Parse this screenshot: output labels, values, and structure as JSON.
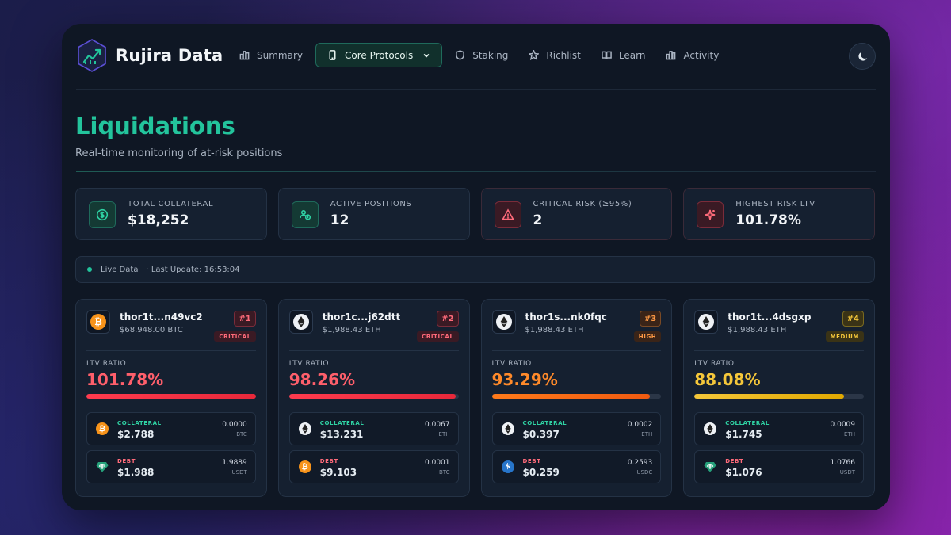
{
  "app": {
    "brand": "Rujira Data"
  },
  "nav": {
    "summary": "Summary",
    "core_protocols": "Core Protocols",
    "staking": "Staking",
    "richlist": "Richlist",
    "learn": "Learn",
    "activity": "Activity"
  },
  "page": {
    "title": "Liquidations",
    "subtitle": "Real-time monitoring of at-risk positions"
  },
  "stats": [
    {
      "label": "TOTAL COLLATERAL",
      "value": "$18,252",
      "icon": "dollar-icon",
      "tone": "green"
    },
    {
      "label": "ACTIVE POSITIONS",
      "value": "12",
      "icon": "users-coin-icon",
      "tone": "green"
    },
    {
      "label": "CRITICAL RISK (≥95%)",
      "value": "2",
      "icon": "warning-icon",
      "tone": "red"
    },
    {
      "label": "HIGHEST RISK LTV",
      "value": "101.78%",
      "icon": "sparkle-icon",
      "tone": "red"
    }
  ],
  "live": {
    "label": "Live Data",
    "update": "· Last Update: 16:53:04"
  },
  "colors": {
    "critical": "#ff4d5e",
    "high": "#ff8a1f",
    "medium": "#f0c419",
    "accent": "#23c49c"
  },
  "positions": [
    {
      "address": "thor1t...n49vc2",
      "amount": "$68,948.00 BTC",
      "asset": "btc",
      "rank": "#1",
      "severity": "CRITICAL",
      "ltv_label": "LTV RATIO",
      "ltv": "101.78%",
      "ltv_pct": 100,
      "collateral": {
        "label": "COLLATERAL",
        "value": "$2.788",
        "amount": "0.0000",
        "token": "BTC",
        "icon": "btc"
      },
      "debt": {
        "label": "DEBT",
        "value": "$1.988",
        "amount": "1.9889",
        "token": "USDT",
        "icon": "usdt"
      }
    },
    {
      "address": "thor1c...j62dtt",
      "amount": "$1,988.43 ETH",
      "asset": "eth",
      "rank": "#2",
      "severity": "CRITICAL",
      "ltv_label": "LTV RATIO",
      "ltv": "98.26%",
      "ltv_pct": 98.26,
      "collateral": {
        "label": "COLLATERAL",
        "value": "$13.231",
        "amount": "0.0067",
        "token": "ETH",
        "icon": "eth"
      },
      "debt": {
        "label": "DEBT",
        "value": "$9.103",
        "amount": "0.0001",
        "token": "BTC",
        "icon": "btc"
      }
    },
    {
      "address": "thor1s...nk0fqc",
      "amount": "$1,988.43 ETH",
      "asset": "eth",
      "rank": "#3",
      "severity": "HIGH",
      "ltv_label": "LTV RATIO",
      "ltv": "93.29%",
      "ltv_pct": 93.29,
      "collateral": {
        "label": "COLLATERAL",
        "value": "$0.397",
        "amount": "0.0002",
        "token": "ETH",
        "icon": "eth"
      },
      "debt": {
        "label": "DEBT",
        "value": "$0.259",
        "amount": "0.2593",
        "token": "USDC",
        "icon": "usdc"
      }
    },
    {
      "address": "thor1t...4dsgxp",
      "amount": "$1,988.43 ETH",
      "asset": "eth",
      "rank": "#4",
      "severity": "MEDIUM",
      "ltv_label": "LTV RATIO",
      "ltv": "88.08%",
      "ltv_pct": 88.08,
      "collateral": {
        "label": "COLLATERAL",
        "value": "$1.745",
        "amount": "0.0009",
        "token": "ETH",
        "icon": "eth"
      },
      "debt": {
        "label": "DEBT",
        "value": "$1.076",
        "amount": "1.0766",
        "token": "USDT",
        "icon": "usdt"
      }
    }
  ]
}
